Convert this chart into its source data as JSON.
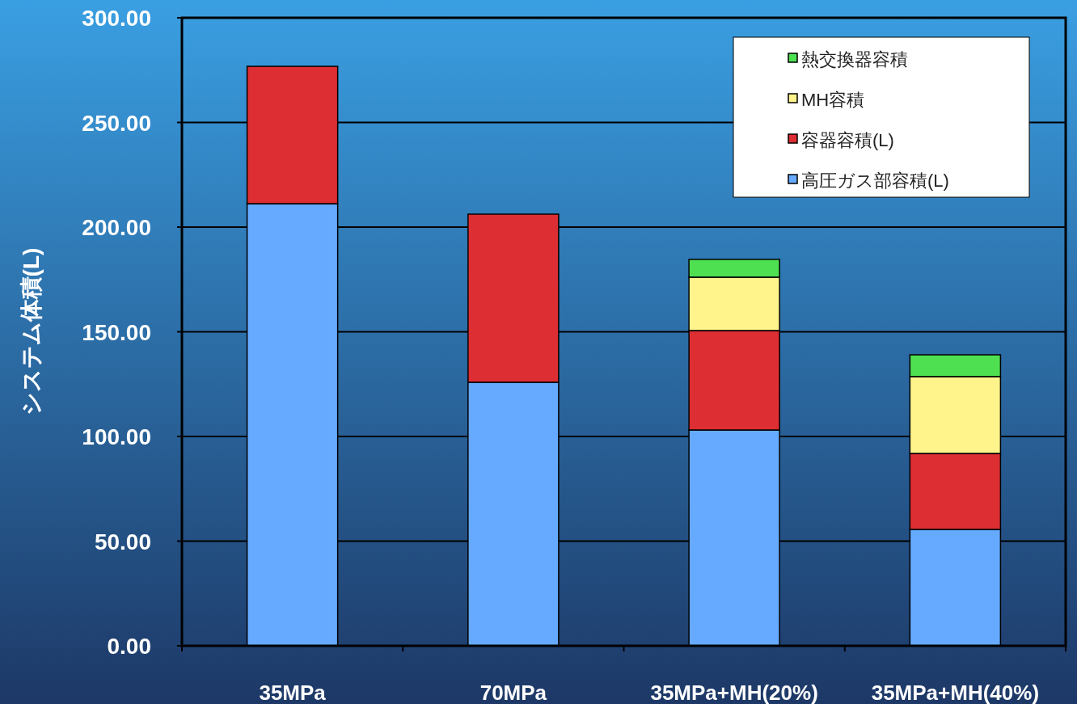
{
  "chart_data": {
    "type": "bar",
    "stacked": true,
    "categories": [
      "35MPa",
      "70MPa",
      "35MPa+MH(20%)",
      "35MPa+MH(40%)"
    ],
    "ylabel": "システム体積(L)",
    "ylim": [
      0,
      300
    ],
    "yticks": [
      {
        "value": 0,
        "label": "0.00"
      },
      {
        "value": 50,
        "label": "50.00"
      },
      {
        "value": 100,
        "label": "100.00"
      },
      {
        "value": 150,
        "label": "150.00"
      },
      {
        "value": 200,
        "label": "200.00"
      },
      {
        "value": 250,
        "label": "250.00"
      },
      {
        "value": 300,
        "label": "300.00"
      }
    ],
    "grid": "y",
    "legend": "top right",
    "series": [
      {
        "name": "高圧ガス部容積(L)",
        "color": "#66aaff",
        "values": [
          211.2,
          125.9,
          103.1,
          55.6
        ]
      },
      {
        "name": "容器容積(L)",
        "color": "#dd2e33",
        "values": [
          65.6,
          80.3,
          47.5,
          36.3
        ]
      },
      {
        "name": "MH容積",
        "color": "#fff48c",
        "values": [
          null,
          null,
          25.5,
          36.7
        ]
      },
      {
        "name": "熱交換器容積",
        "color": "#4ee051",
        "values": [
          null,
          null,
          8.5,
          10.4
        ]
      }
    ]
  }
}
